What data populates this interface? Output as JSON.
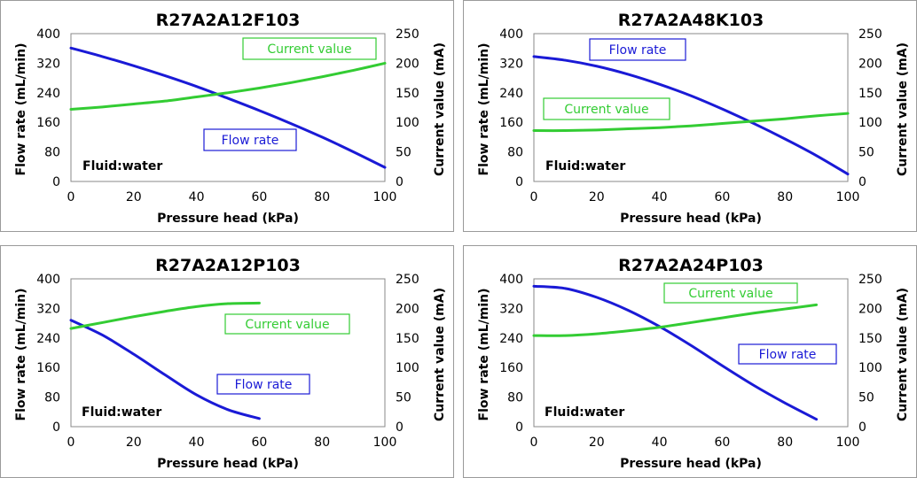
{
  "colors": {
    "flow": "#1a1ad6",
    "current": "#33cc33"
  },
  "chart_data": [
    {
      "type": "line",
      "title": "R27A2A12F103",
      "xlabel": "Pressure head (kPa)",
      "ylabel": "Flow rate (mL/min)",
      "y2label": "Current value (mA)",
      "xlim": [
        0,
        100
      ],
      "xticks": [
        0,
        20,
        40,
        60,
        80,
        100
      ],
      "ylim": [
        0,
        400
      ],
      "yticks": [
        0,
        80,
        160,
        240,
        320,
        400
      ],
      "y2lim": [
        0,
        250
      ],
      "y2ticks": [
        0,
        50,
        100,
        150,
        200,
        250
      ],
      "note": "Fluid:water",
      "series": [
        {
          "name": "Flow rate",
          "axis": "left",
          "color": "#1a1ad6",
          "x": [
            0,
            10,
            20,
            30,
            40,
            50,
            60,
            70,
            80,
            90,
            100
          ],
          "y": [
            361,
            338,
            313,
            286,
            257,
            225,
            192,
            157,
            120,
            80,
            38
          ],
          "legend_pos": "lower-middle"
        },
        {
          "name": "Current value",
          "axis": "right",
          "color": "#33cc33",
          "x": [
            0,
            10,
            20,
            30,
            40,
            50,
            60,
            70,
            80,
            90,
            100
          ],
          "y": [
            122,
            126,
            131,
            136,
            143,
            150,
            158,
            167,
            177,
            188,
            200
          ],
          "legend_pos": "top-right"
        }
      ]
    },
    {
      "type": "line",
      "title": "R27A2A48K103",
      "xlabel": "Pressure head (kPa)",
      "ylabel": "Flow rate (mL/min)",
      "y2label": "Current value (mA)",
      "xlim": [
        0,
        100
      ],
      "xticks": [
        0,
        20,
        40,
        60,
        80,
        100
      ],
      "ylim": [
        0,
        400
      ],
      "yticks": [
        0,
        80,
        160,
        240,
        320,
        400
      ],
      "y2lim": [
        0,
        250
      ],
      "y2ticks": [
        0,
        50,
        100,
        150,
        200,
        250
      ],
      "note": "Fluid:water",
      "series": [
        {
          "name": "Flow rate",
          "axis": "left",
          "color": "#1a1ad6",
          "x": [
            0,
            10,
            20,
            30,
            40,
            50,
            60,
            70,
            80,
            90,
            100
          ],
          "y": [
            338,
            328,
            312,
            290,
            263,
            232,
            196,
            157,
            115,
            70,
            20
          ],
          "legend_pos": "top-left"
        },
        {
          "name": "Current value",
          "axis": "right",
          "color": "#33cc33",
          "x": [
            0,
            10,
            20,
            30,
            40,
            50,
            60,
            70,
            80,
            90,
            100
          ],
          "y": [
            86,
            86,
            87,
            89,
            91,
            94,
            98,
            102,
            106,
            111,
            115
          ],
          "legend_pos": "middle-left"
        }
      ]
    },
    {
      "type": "line",
      "title": "R27A2A12P103",
      "xlabel": "Pressure head (kPa)",
      "ylabel": "Flow rate (mL/min)",
      "y2label": "Current value (mA)",
      "xlim": [
        0,
        100
      ],
      "xticks": [
        0,
        20,
        40,
        60,
        80,
        100
      ],
      "ylim": [
        0,
        400
      ],
      "yticks": [
        0,
        80,
        160,
        240,
        320,
        400
      ],
      "y2lim": [
        0,
        250
      ],
      "y2ticks": [
        0,
        50,
        100,
        150,
        200,
        250
      ],
      "note": "Fluid:water",
      "series": [
        {
          "name": "Flow rate",
          "axis": "left",
          "color": "#1a1ad6",
          "x": [
            0,
            10,
            20,
            30,
            40,
            50,
            60
          ],
          "y": [
            288,
            248,
            196,
            140,
            86,
            46,
            22
          ],
          "legend_pos": "lower-middle"
        },
        {
          "name": "Current value",
          "axis": "right",
          "color": "#33cc33",
          "x": [
            0,
            10,
            20,
            30,
            40,
            50,
            60
          ],
          "y": [
            166,
            176,
            186,
            195,
            203,
            208,
            209
          ],
          "legend_pos": "middle-right"
        }
      ]
    },
    {
      "type": "line",
      "title": "R27A2A24P103",
      "xlabel": "Pressure head (kPa)",
      "ylabel": "Flow rate (mL/min)",
      "y2label": "Current value (mA)",
      "xlim": [
        0,
        100
      ],
      "xticks": [
        0,
        20,
        40,
        60,
        80,
        100
      ],
      "ylim": [
        0,
        400
      ],
      "yticks": [
        0,
        80,
        160,
        240,
        320,
        400
      ],
      "y2lim": [
        0,
        250
      ],
      "y2ticks": [
        0,
        50,
        100,
        150,
        200,
        250
      ],
      "note": "Fluid:water",
      "series": [
        {
          "name": "Flow rate",
          "axis": "left",
          "color": "#1a1ad6",
          "x": [
            0,
            10,
            20,
            30,
            40,
            50,
            60,
            70,
            80,
            90
          ],
          "y": [
            380,
            374,
            350,
            315,
            271,
            220,
            165,
            112,
            64,
            20
          ],
          "legend_pos": "middle-right"
        },
        {
          "name": "Current value",
          "axis": "right",
          "color": "#33cc33",
          "x": [
            0,
            10,
            20,
            30,
            40,
            50,
            60,
            70,
            80,
            90
          ],
          "y": [
            154,
            154,
            157,
            162,
            168,
            176,
            184,
            192,
            199,
            206
          ],
          "legend_pos": "top-right"
        }
      ]
    }
  ]
}
